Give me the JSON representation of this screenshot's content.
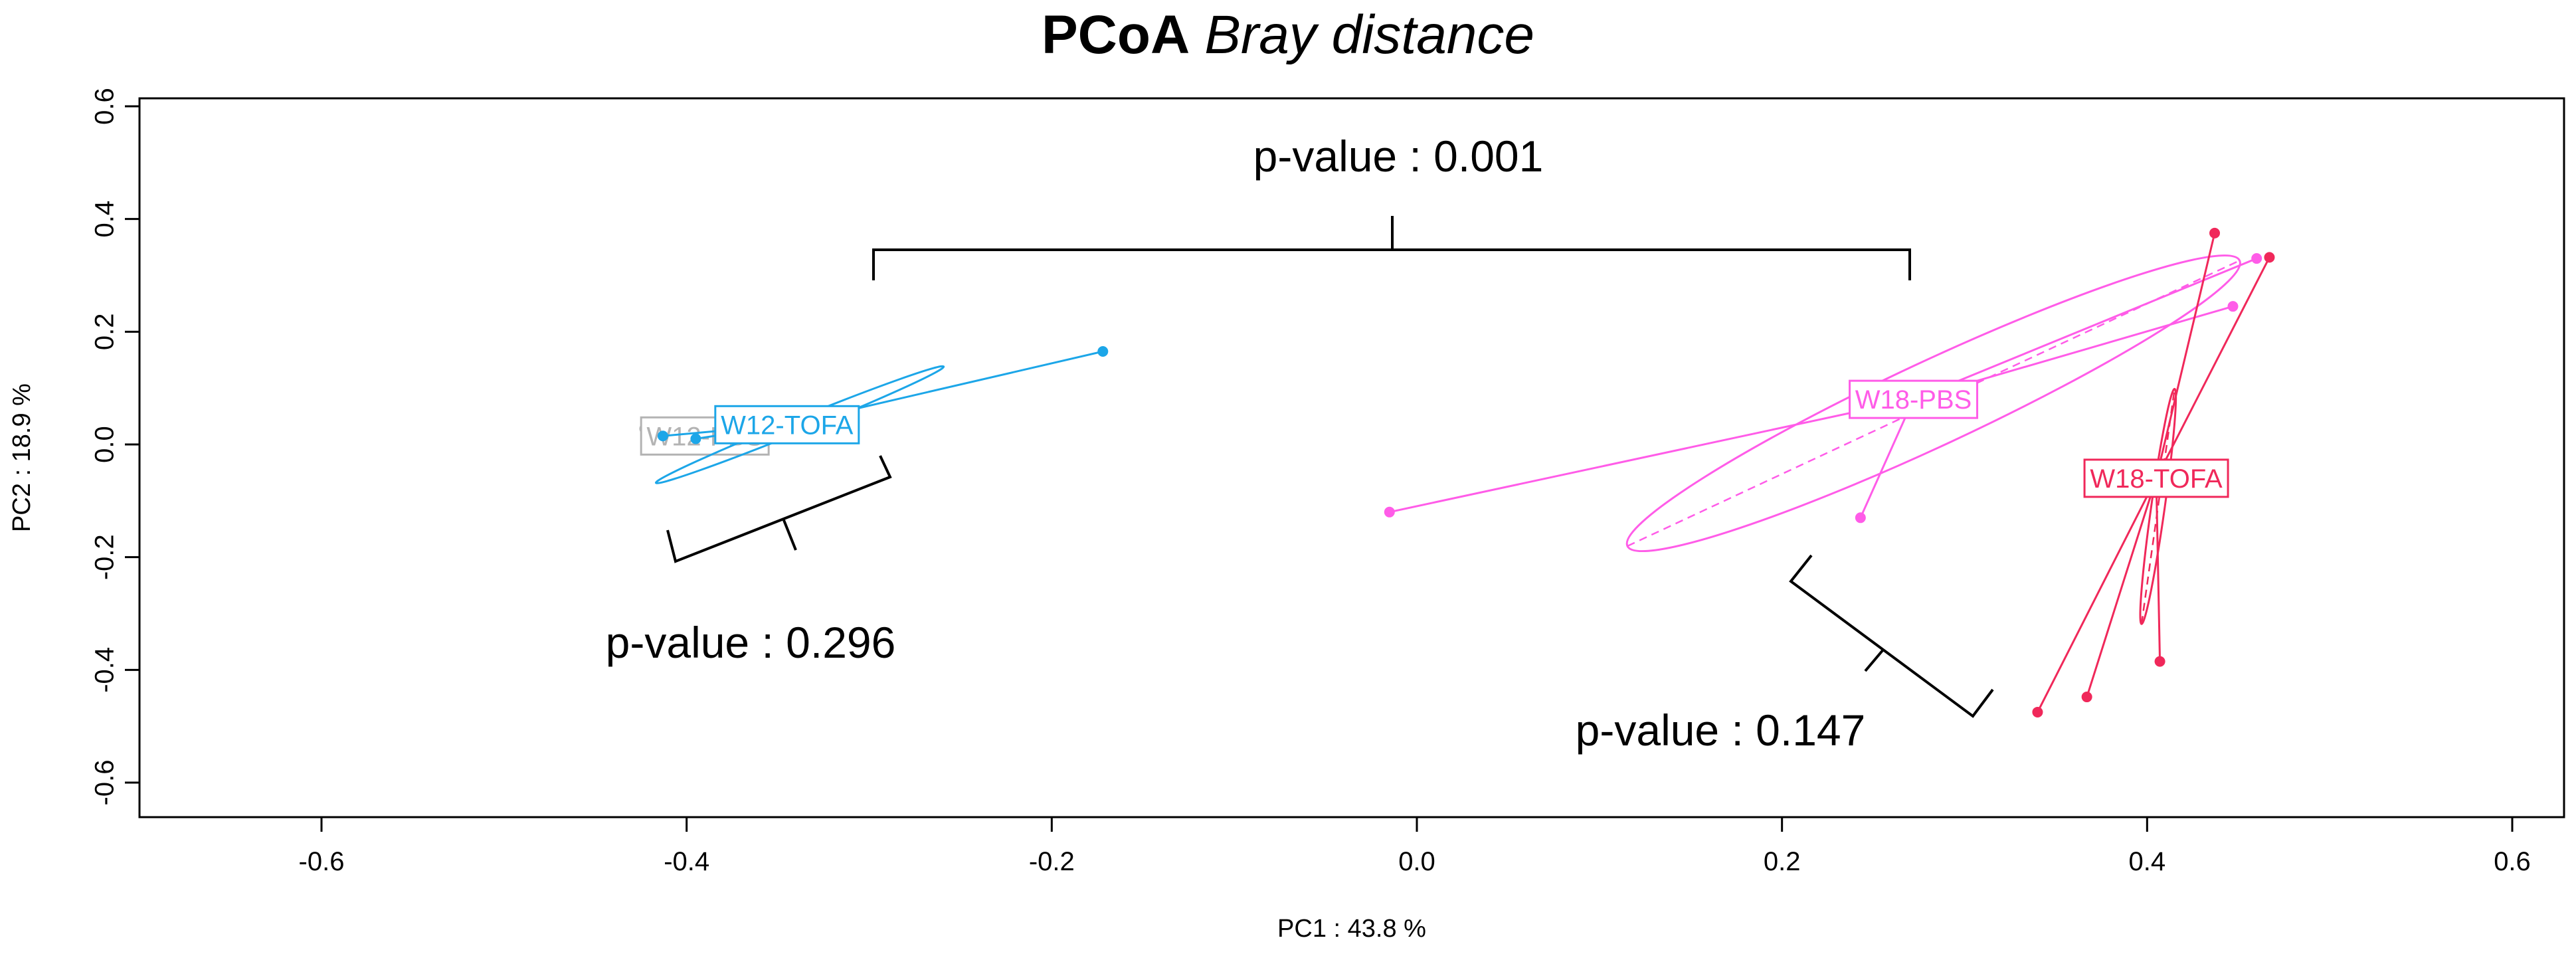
{
  "chart_data": {
    "type": "scatter",
    "title": "PCoA",
    "title_italic": "Bray distance",
    "xlabel": "PC1 : 43.8 %",
    "ylabel": "PC2 : 18.9 %",
    "xlim": [
      -0.7,
      0.6
    ],
    "ylim": [
      -0.68,
      0.62
    ],
    "xticks": [
      -0.6,
      -0.4,
      -0.2,
      0.0,
      0.2,
      0.4,
      0.6
    ],
    "xtick_labels": [
      "-0.6",
      "-0.4",
      "-0.2",
      "0.0",
      "0.2",
      "0.4",
      "0.6"
    ],
    "yticks": [
      -0.6,
      -0.4,
      -0.2,
      0.0,
      0.2,
      0.4,
      0.6
    ],
    "ytick_labels": [
      "-0.6",
      "-0.4",
      "-0.2",
      "0.0",
      "0.2",
      "0.4",
      "0.6"
    ],
    "grid": false,
    "series": [
      {
        "name": "W12-PBS",
        "label": "W12-PBS",
        "color": "#b3b3b3",
        "centroid": [
          -0.39,
          0.015
        ],
        "points": [
          [
            -0.423,
            0.028
          ],
          [
            -0.405,
            0.018
          ],
          [
            -0.395,
            0.012
          ]
        ],
        "ellipse": {
          "center": [
            -0.39,
            0.012
          ],
          "rx": 0.018,
          "ry": 0.008,
          "angle": 0
        }
      },
      {
        "name": "W12-TOFA",
        "label": "W12-TOFA",
        "color": "#1ca6e8",
        "centroid": [
          -0.345,
          0.035
        ],
        "points": [
          [
            -0.413,
            0.015
          ],
          [
            -0.172,
            0.165
          ],
          [
            -0.395,
            0.01
          ]
        ],
        "ellipse": {
          "center": [
            -0.338,
            0.035
          ],
          "rx": 0.085,
          "ry": 0.012,
          "angle": 22
        }
      },
      {
        "name": "W18-PBS",
        "label": "W18-PBS",
        "color": "#ff5ce8",
        "centroid": [
          0.272,
          0.08
        ],
        "points": [
          [
            -0.015,
            -0.12
          ],
          [
            0.243,
            -0.13
          ],
          [
            0.447,
            0.245
          ],
          [
            0.46,
            0.33
          ]
        ],
        "ellipse": {
          "center": [
            0.283,
            0.073
          ],
          "rx": 0.185,
          "ry": 0.075,
          "angle": 25
        }
      },
      {
        "name": "W18-TOFA",
        "label": "W18-TOFA",
        "color": "#f0285a",
        "centroid": [
          0.405,
          -0.06
        ],
        "points": [
          [
            0.437,
            0.375
          ],
          [
            0.467,
            0.332
          ],
          [
            0.407,
            -0.385
          ],
          [
            0.367,
            -0.448
          ],
          [
            0.34,
            -0.475
          ]
        ],
        "ellipse": {
          "center": [
            0.406,
            -0.11
          ],
          "rx": 0.065,
          "ry": 0.012,
          "angle": 82
        }
      }
    ],
    "annotations": [
      {
        "text": "p-value : 0.001",
        "compares": [
          "W12",
          "W18"
        ]
      },
      {
        "text": "p-value : 0.296",
        "compares": [
          "W12-PBS",
          "W12-TOFA"
        ]
      },
      {
        "text": "p-value : 0.147",
        "compares": [
          "W18-PBS",
          "W18-TOFA"
        ]
      }
    ]
  }
}
